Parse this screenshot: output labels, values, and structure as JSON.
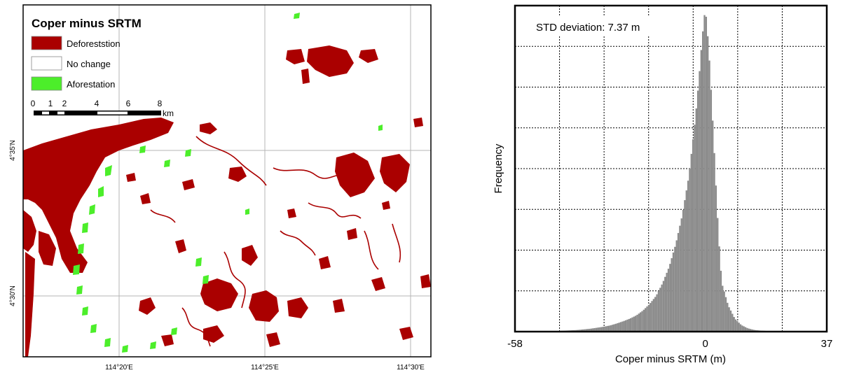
{
  "map": {
    "title": "Coper minus SRTM",
    "legend": [
      {
        "label": "Deforeststion",
        "color": "#aa0000"
      },
      {
        "label": "No change",
        "color": "#ffffff"
      },
      {
        "label": "Aforestation",
        "color": "#4cee2a"
      }
    ],
    "scalebar": {
      "ticks": [
        "0",
        "1",
        "2",
        "4",
        "6",
        "8"
      ],
      "unit": "km"
    },
    "lat_labels": [
      "4°35'N",
      "4°30'N"
    ],
    "lon_labels": [
      "114°20'E",
      "114°25'E",
      "114°30'E"
    ]
  },
  "chart_data": {
    "type": "bar",
    "title": "",
    "annotation": "STD deviation: 7.37 m",
    "xlabel": "Coper minus SRTM (m)",
    "ylabel": "Frequency",
    "xlim": [
      -58,
      37
    ],
    "xtick_labels": [
      "-58",
      "0",
      "37"
    ],
    "y_tick_labels_shown": false,
    "grid": "dotted",
    "bar_color": "#8c8c8c",
    "bin_width": 1,
    "bin_centers": [
      -57,
      -55,
      -53,
      -51,
      -49,
      -47,
      -45,
      -43,
      -41,
      -39,
      -37,
      -35,
      -33,
      -31,
      -29,
      -27,
      -25,
      -23,
      -21,
      -19,
      -17,
      -15,
      -13,
      -11,
      -9,
      -7,
      -5,
      -4,
      -3,
      -2,
      -1,
      0,
      1,
      2,
      3,
      4,
      5,
      7,
      9,
      11,
      13,
      15,
      17,
      19,
      21,
      23,
      25,
      27,
      29,
      31,
      33,
      35
    ],
    "frequencies": [
      0.0,
      0.0,
      0.0,
      0.0,
      0.0,
      0.001,
      0.002,
      0.003,
      0.004,
      0.005,
      0.007,
      0.009,
      0.012,
      0.015,
      0.019,
      0.025,
      0.032,
      0.04,
      0.05,
      0.065,
      0.085,
      0.11,
      0.15,
      0.2,
      0.27,
      0.36,
      0.48,
      0.57,
      0.66,
      0.77,
      0.9,
      1.0,
      0.88,
      0.7,
      0.5,
      0.3,
      0.15,
      0.08,
      0.04,
      0.02,
      0.01,
      0.005,
      0.003,
      0.002,
      0.001,
      0.0,
      0.0,
      0.0,
      0.0,
      0.0,
      0.0,
      0.0
    ]
  }
}
